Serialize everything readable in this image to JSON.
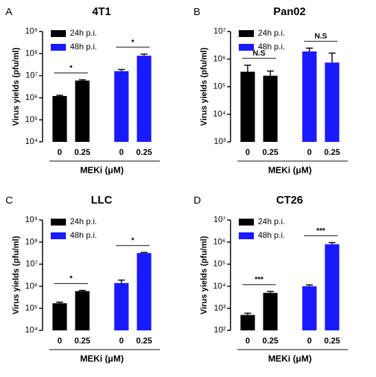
{
  "chart_data": [
    {
      "type": "bar",
      "panel_label": "A",
      "title": "4T1",
      "y_label": "Virus yields (pfu/ml)",
      "x_label": "MEKi (μM)",
      "categories": [
        "0",
        "0.25"
      ],
      "log_scale": true,
      "legend": "upper left",
      "ylim": [
        10000,
        1000000000
      ],
      "yticks": [
        {
          "value": 10000,
          "label": "10⁴"
        },
        {
          "value": 100000,
          "label": "10⁵"
        },
        {
          "value": 1000000,
          "label": "10⁶"
        },
        {
          "value": 10000000,
          "label": "10⁷"
        },
        {
          "value": 100000000,
          "label": "10⁸"
        },
        {
          "value": 1000000000,
          "label": "10⁹"
        }
      ],
      "series": [
        {
          "name": "24h p.i.",
          "color": "#000000",
          "values": [
            1200000,
            6000000
          ],
          "errors": [
            100000,
            500000
          ]
        },
        {
          "name": "48h p.i.",
          "color": "#1a1aff",
          "values": [
            16000000,
            80000000
          ],
          "errors": [
            3000000,
            15000000
          ]
        }
      ],
      "annotations": [
        "*",
        "*"
      ]
    },
    {
      "type": "bar",
      "panel_label": "B",
      "title": "Pan02",
      "y_label": "Virus yields (pfu/ml)",
      "x_label": "MEKi (μM)",
      "categories": [
        "0",
        "0.25"
      ],
      "log_scale": true,
      "legend": "upper left",
      "ylim": [
        1000,
        10000000
      ],
      "yticks": [
        {
          "value": 1000,
          "label": "10³"
        },
        {
          "value": 10000,
          "label": "10⁴"
        },
        {
          "value": 100000,
          "label": "10⁵"
        },
        {
          "value": 1000000,
          "label": "10⁶"
        },
        {
          "value": 10000000,
          "label": "10⁷"
        }
      ],
      "series": [
        {
          "name": "24h p.i.",
          "color": "#000000",
          "values": [
            350000,
            250000
          ],
          "errors": [
            250000,
            120000
          ]
        },
        {
          "name": "48h p.i.",
          "color": "#1a1aff",
          "values": [
            1900000,
            750000
          ],
          "errors": [
            600000,
            900000
          ]
        }
      ],
      "annotations": [
        "N.S",
        "N.S"
      ]
    },
    {
      "type": "bar",
      "panel_label": "C",
      "title": "LLC",
      "y_label": "Virus yields (pfu/ml)",
      "x_label": "MEKi (μM)",
      "categories": [
        "0",
        "0.25"
      ],
      "log_scale": true,
      "legend": "upper left",
      "ylim": [
        10000,
        1000000000
      ],
      "yticks": [
        {
          "value": 10000,
          "label": "10⁴"
        },
        {
          "value": 100000,
          "label": "10⁵"
        },
        {
          "value": 1000000,
          "label": "10⁶"
        },
        {
          "value": 10000000,
          "label": "10⁷"
        },
        {
          "value": 100000000,
          "label": "10⁸"
        },
        {
          "value": 1000000000,
          "label": "10⁹"
        }
      ],
      "series": [
        {
          "name": "24h p.i.",
          "color": "#000000",
          "values": [
            170000,
            600000
          ],
          "errors": [
            20000,
            50000
          ]
        },
        {
          "name": "48h p.i.",
          "color": "#1a1aff",
          "values": [
            1400000,
            32000000
          ],
          "errors": [
            500000,
            2000000
          ]
        }
      ],
      "annotations": [
        "*",
        "*"
      ]
    },
    {
      "type": "bar",
      "panel_label": "D",
      "title": "CT26",
      "y_label": "Virus yields (pfu/ml)",
      "x_label": "MEKi (μM)",
      "categories": [
        "0",
        "0.25"
      ],
      "log_scale": true,
      "legend": "upper left",
      "ylim": [
        100,
        10000000
      ],
      "yticks": [
        {
          "value": 100,
          "label": "10²"
        },
        {
          "value": 1000,
          "label": "10³"
        },
        {
          "value": 10000,
          "label": "10⁴"
        },
        {
          "value": 100000,
          "label": "10⁵"
        },
        {
          "value": 1000000,
          "label": "10⁶"
        },
        {
          "value": 10000000,
          "label": "10⁷"
        }
      ],
      "series": [
        {
          "name": "24h p.i.",
          "color": "#000000",
          "values": [
            500,
            5000
          ],
          "errors": [
            100,
            800
          ]
        },
        {
          "name": "48h p.i.",
          "color": "#1a1aff",
          "values": [
            10000,
            800000
          ],
          "errors": [
            1500,
            150000
          ]
        }
      ],
      "annotations": [
        "***",
        "***"
      ]
    }
  ]
}
